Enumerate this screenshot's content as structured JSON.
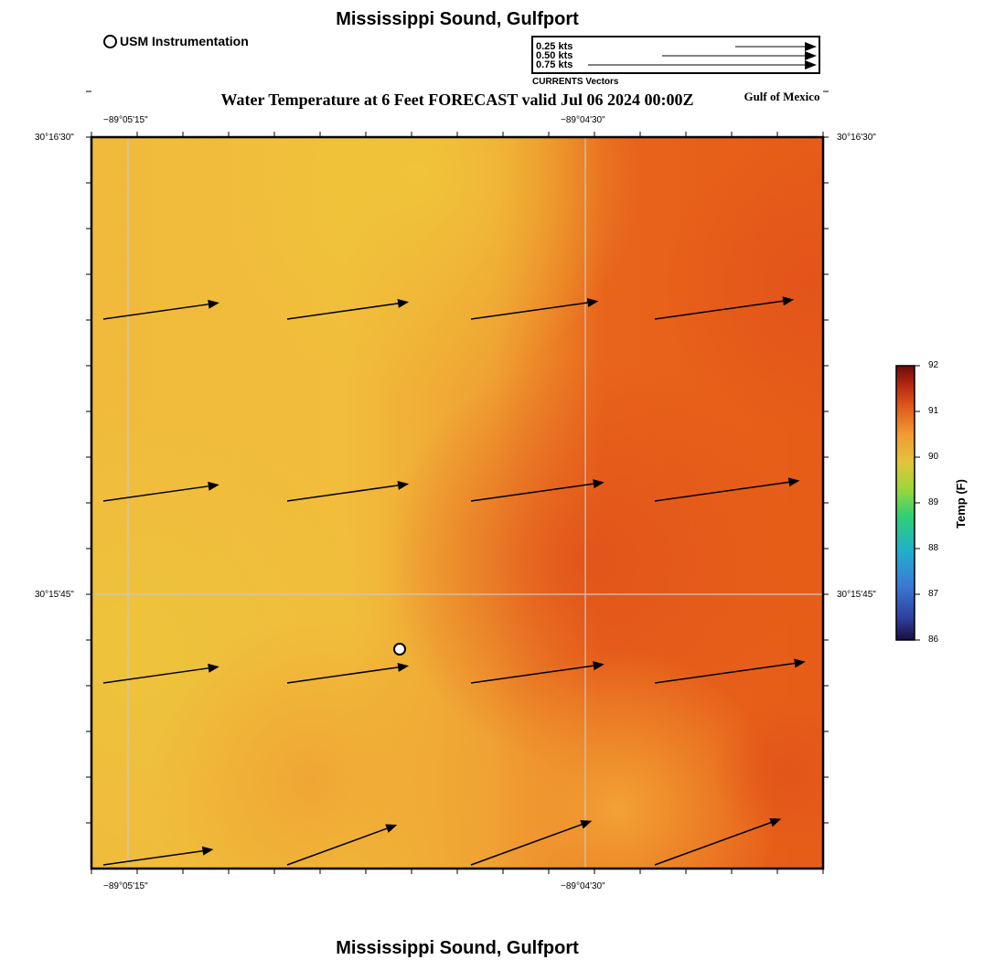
{
  "header": {
    "title": "Mississippi Sound, Gulfport",
    "station_legend": "USM Instrumentation",
    "forecast_title": "Water Temperature at 6 Feet FORECAST valid Jul 06 2024 00:00Z",
    "region_label": "Gulf of Mexico"
  },
  "vector_legend": {
    "title": "CURRENTS Vectors",
    "entries": [
      {
        "label": "0.25 kts",
        "speed": 0.25
      },
      {
        "label": "0.50 kts",
        "speed": 0.5
      },
      {
        "label": "0.75 kts",
        "speed": 0.75
      }
    ]
  },
  "map": {
    "lon_ticks": [
      "−89°05'15\"",
      "−89°04'30\""
    ],
    "lat_ticks": [
      "30°16'30\"",
      "30°15'45\""
    ],
    "station": {
      "name": "USM Instrumentation"
    },
    "current_vectors": [
      {
        "row": 1,
        "col": 1,
        "speed_kts": 0.4,
        "direction": "ENE"
      },
      {
        "row": 1,
        "col": 2,
        "speed_kts": 0.42,
        "direction": "ENE"
      },
      {
        "row": 1,
        "col": 3,
        "speed_kts": 0.44,
        "direction": "ENE"
      },
      {
        "row": 1,
        "col": 4,
        "speed_kts": 0.48,
        "direction": "ENE"
      },
      {
        "row": 2,
        "col": 1,
        "speed_kts": 0.4,
        "direction": "ENE"
      },
      {
        "row": 2,
        "col": 2,
        "speed_kts": 0.42,
        "direction": "ENE"
      },
      {
        "row": 2,
        "col": 3,
        "speed_kts": 0.46,
        "direction": "ENE"
      },
      {
        "row": 2,
        "col": 4,
        "speed_kts": 0.5,
        "direction": "ENE"
      },
      {
        "row": 3,
        "col": 1,
        "speed_kts": 0.4,
        "direction": "ENE"
      },
      {
        "row": 3,
        "col": 2,
        "speed_kts": 0.42,
        "direction": "ENE"
      },
      {
        "row": 3,
        "col": 3,
        "speed_kts": 0.46,
        "direction": "ENE"
      },
      {
        "row": 3,
        "col": 4,
        "speed_kts": 0.52,
        "direction": "ENE"
      },
      {
        "row": 4,
        "col": 1,
        "speed_kts": 0.38,
        "direction": "ENE"
      },
      {
        "row": 4,
        "col": 2,
        "speed_kts": 0.4,
        "direction": "NE"
      },
      {
        "row": 4,
        "col": 3,
        "speed_kts": 0.44,
        "direction": "NE"
      },
      {
        "row": 4,
        "col": 4,
        "speed_kts": 0.46,
        "direction": "NE"
      }
    ]
  },
  "colorbar": {
    "title": "Temp (F)",
    "ticks": [
      "92",
      "91",
      "90",
      "89",
      "88",
      "87",
      "86"
    ],
    "min": 86,
    "max": 92
  },
  "footer": {
    "title": "Mississippi Sound, Gulfport"
  }
}
